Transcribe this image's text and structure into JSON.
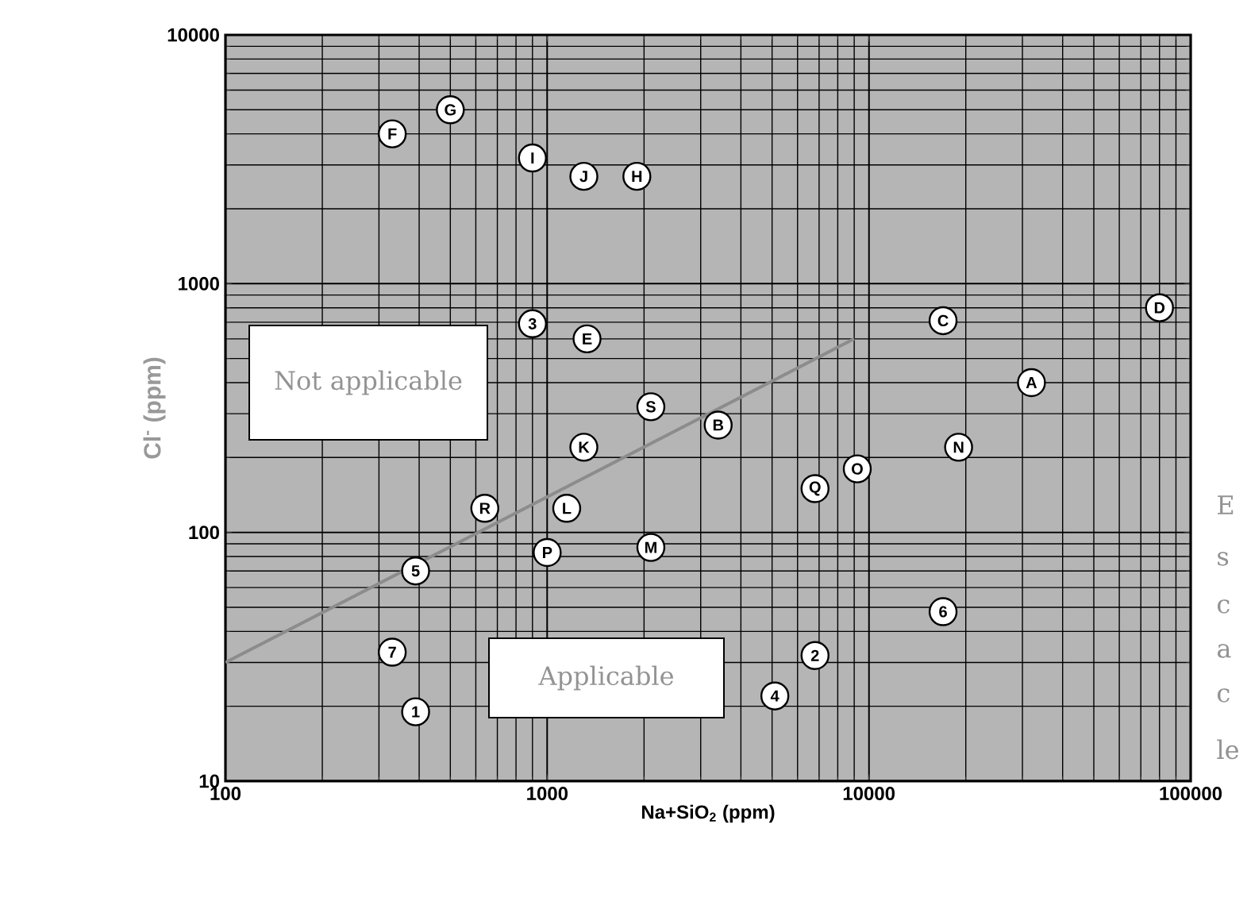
{
  "chart_data": {
    "type": "scatter",
    "xlabel": "Na+SiO$_{2}$ (ppm)",
    "ylabel": "Cl$^{-}$ (ppm)",
    "log": "xy",
    "grid": true,
    "xlim": [
      100,
      100000
    ],
    "ylim": [
      10,
      10000
    ],
    "xticks": [
      100,
      1000,
      10000,
      100000
    ],
    "yticks": [
      10,
      100,
      1000,
      10000
    ],
    "series": [
      {
        "type": "line",
        "marker": "none",
        "color": "#8c8c8c",
        "x": [
          100,
          9000
        ],
        "values": [
          30,
          600
        ]
      },
      {
        "type": "scatter",
        "marker": "circle",
        "color": "#ffffff",
        "x": [
          32000,
          3400,
          17000,
          80000,
          1330,
          330,
          500,
          1900,
          900,
          1300,
          1300,
          1150,
          2100,
          19000,
          9200,
          1000,
          6800,
          640,
          2100,
          390,
          6800,
          900,
          5100,
          390,
          17000,
          330
        ],
        "values": [
          400,
          270,
          710,
          800,
          600,
          4000,
          5000,
          2700,
          3200,
          2700,
          220,
          125,
          87,
          220,
          180,
          83,
          150,
          125,
          320,
          19,
          32,
          690,
          22,
          70,
          48,
          33
        ]
      }
    ],
    "annotations": [
      {
        "text": "A",
        "x": 32000,
        "y": 400
      },
      {
        "text": "B",
        "x": 3400,
        "y": 270
      },
      {
        "text": "C",
        "x": 17000,
        "y": 710
      },
      {
        "text": "D",
        "x": 80000,
        "y": 800
      },
      {
        "text": "E",
        "x": 1330,
        "y": 600
      },
      {
        "text": "F",
        "x": 330,
        "y": 4000
      },
      {
        "text": "G",
        "x": 500,
        "y": 5000
      },
      {
        "text": "H",
        "x": 1900,
        "y": 2700
      },
      {
        "text": "I",
        "x": 900,
        "y": 3200
      },
      {
        "text": "J",
        "x": 1300,
        "y": 2700
      },
      {
        "text": "K",
        "x": 1300,
        "y": 220
      },
      {
        "text": "L",
        "x": 1150,
        "y": 125
      },
      {
        "text": "M",
        "x": 2100,
        "y": 87
      },
      {
        "text": "N",
        "x": 19000,
        "y": 220
      },
      {
        "text": "O",
        "x": 9200,
        "y": 180
      },
      {
        "text": "P",
        "x": 1000,
        "y": 83
      },
      {
        "text": "Q",
        "x": 6800,
        "y": 150
      },
      {
        "text": "R",
        "x": 640,
        "y": 125
      },
      {
        "text": "S",
        "x": 2100,
        "y": 320
      },
      {
        "text": "1",
        "x": 390,
        "y": 19
      },
      {
        "text": "2",
        "x": 6800,
        "y": 32
      },
      {
        "text": "3",
        "x": 900,
        "y": 690
      },
      {
        "text": "4",
        "x": 5100,
        "y": 22
      },
      {
        "text": "5",
        "x": 390,
        "y": 70
      },
      {
        "text": "6",
        "x": 17000,
        "y": 48
      },
      {
        "text": "7",
        "x": 330,
        "y": 33
      },
      "Not applicable",
      "Applicable",
      "E",
      "s",
      "c",
      "a",
      "c",
      "le"
    ]
  }
}
